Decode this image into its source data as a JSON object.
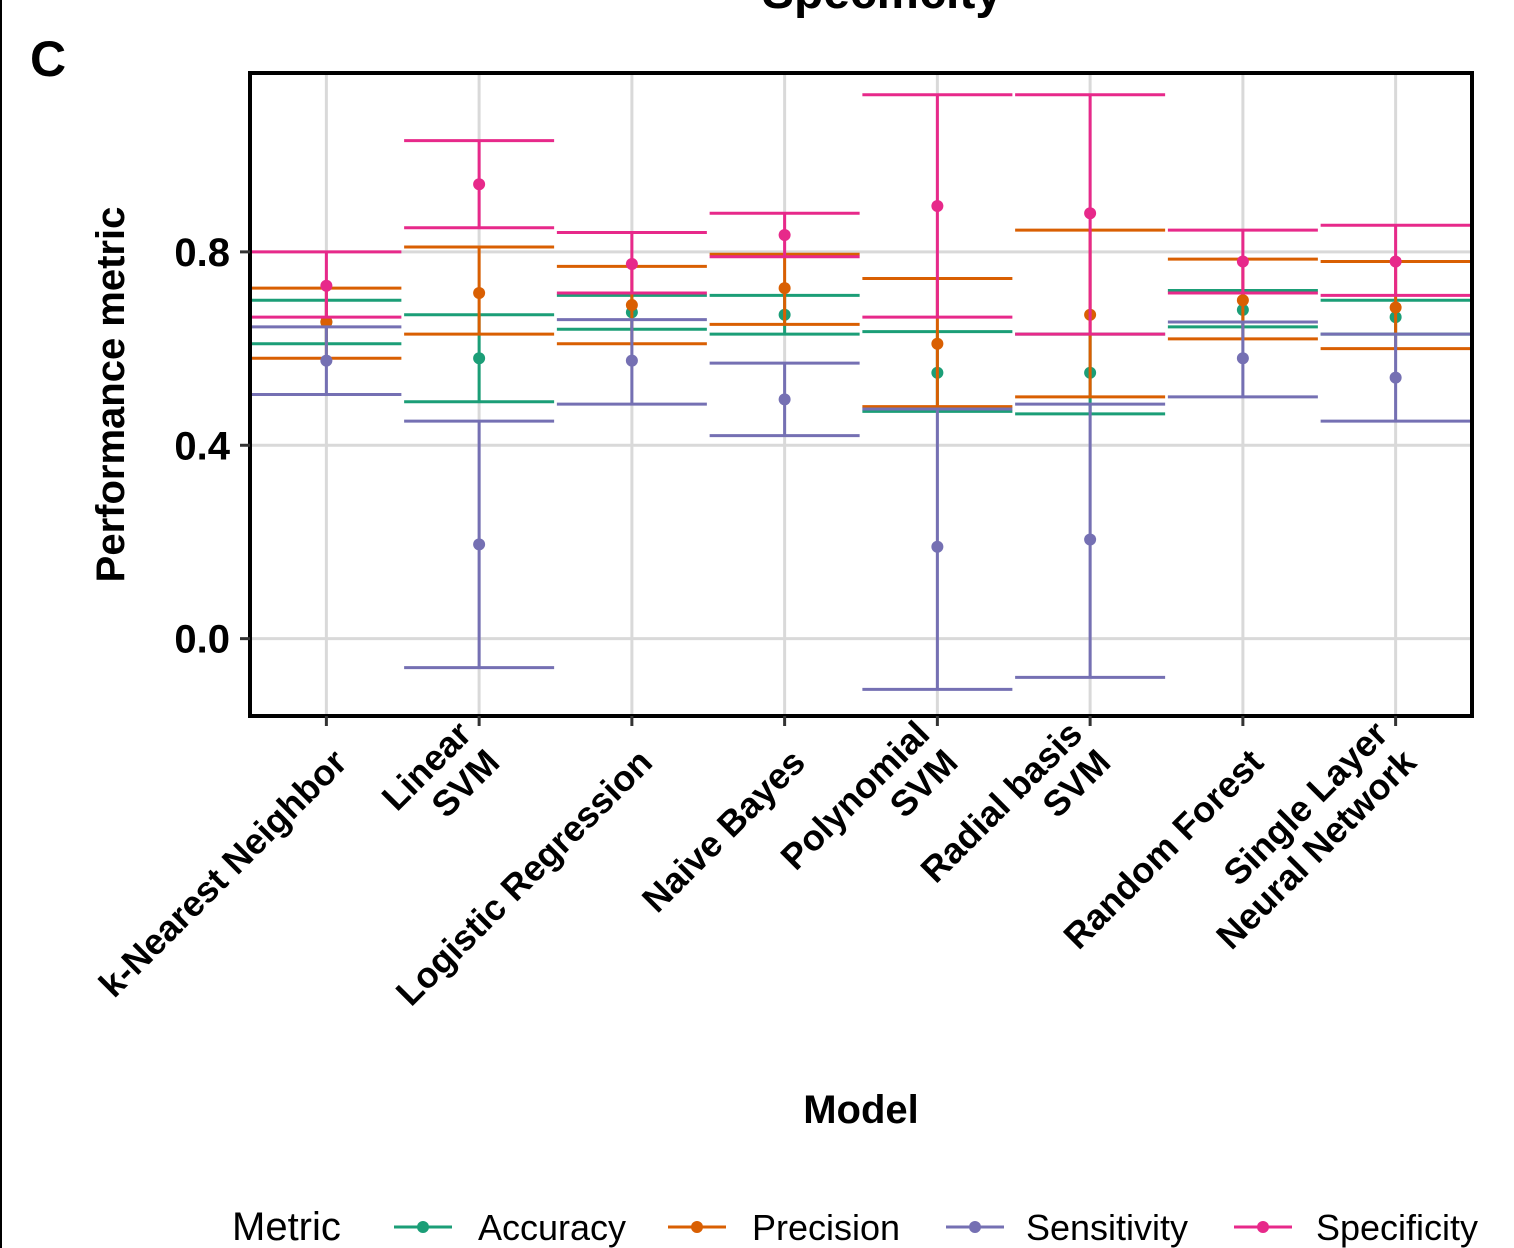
{
  "figure": {
    "panel_label": "C",
    "title_fragment": "Specificity"
  },
  "chart_data": {
    "type": "errorbar",
    "title": "",
    "xlabel": "Model",
    "ylabel": "Performance metric",
    "ylim": [
      -0.16,
      1.17
    ],
    "yticks": [
      0.0,
      0.4,
      0.8
    ],
    "ytick_labels": [
      "0.0",
      "0.4",
      "0.8"
    ],
    "grid": true,
    "legend_position": "bottom",
    "legend_title": "Metric",
    "categories": [
      "k-Nearest Neighbor",
      "Linear\nSVM",
      "Logistic Regression",
      "Naive Bayes",
      "Polynomial\nSVM",
      "Radial basis\nSVM",
      "Random Forest",
      "Single Layer\nNeural Network"
    ],
    "series": [
      {
        "name": "Accuracy",
        "color": "#1b9e77",
        "values": [
          0.655,
          0.58,
          0.675,
          0.67,
          0.55,
          0.55,
          0.68,
          0.665
        ],
        "lower": [
          0.61,
          0.49,
          0.64,
          0.63,
          0.47,
          0.465,
          0.645,
          0.63
        ],
        "upper": [
          0.7,
          0.67,
          0.71,
          0.71,
          0.635,
          0.63,
          0.72,
          0.7
        ]
      },
      {
        "name": "Precision",
        "color": "#d95f02",
        "values": [
          0.655,
          0.715,
          0.69,
          0.725,
          0.61,
          0.67,
          0.7,
          0.685
        ],
        "lower": [
          0.58,
          0.63,
          0.61,
          0.65,
          0.48,
          0.5,
          0.62,
          0.6
        ],
        "upper": [
          0.725,
          0.81,
          0.77,
          0.795,
          0.745,
          0.845,
          0.785,
          0.78
        ]
      },
      {
        "name": "Sensitivity",
        "color": "#7570b3",
        "values": [
          0.575,
          0.195,
          0.575,
          0.495,
          0.19,
          0.205,
          0.58,
          0.54
        ],
        "lower": [
          0.505,
          -0.06,
          0.485,
          0.42,
          -0.105,
          -0.08,
          0.5,
          0.45
        ],
        "upper": [
          0.645,
          0.45,
          0.66,
          0.57,
          0.475,
          0.485,
          0.655,
          0.63
        ]
      },
      {
        "name": "Specificity",
        "color": "#e7298a",
        "values": [
          0.73,
          0.94,
          0.775,
          0.835,
          0.895,
          0.88,
          0.78,
          0.78
        ],
        "lower": [
          0.665,
          0.85,
          0.715,
          0.79,
          0.665,
          0.63,
          0.715,
          0.71
        ],
        "upper": [
          0.8,
          1.03,
          0.84,
          0.88,
          1.125,
          1.125,
          0.845,
          0.855
        ]
      }
    ]
  }
}
